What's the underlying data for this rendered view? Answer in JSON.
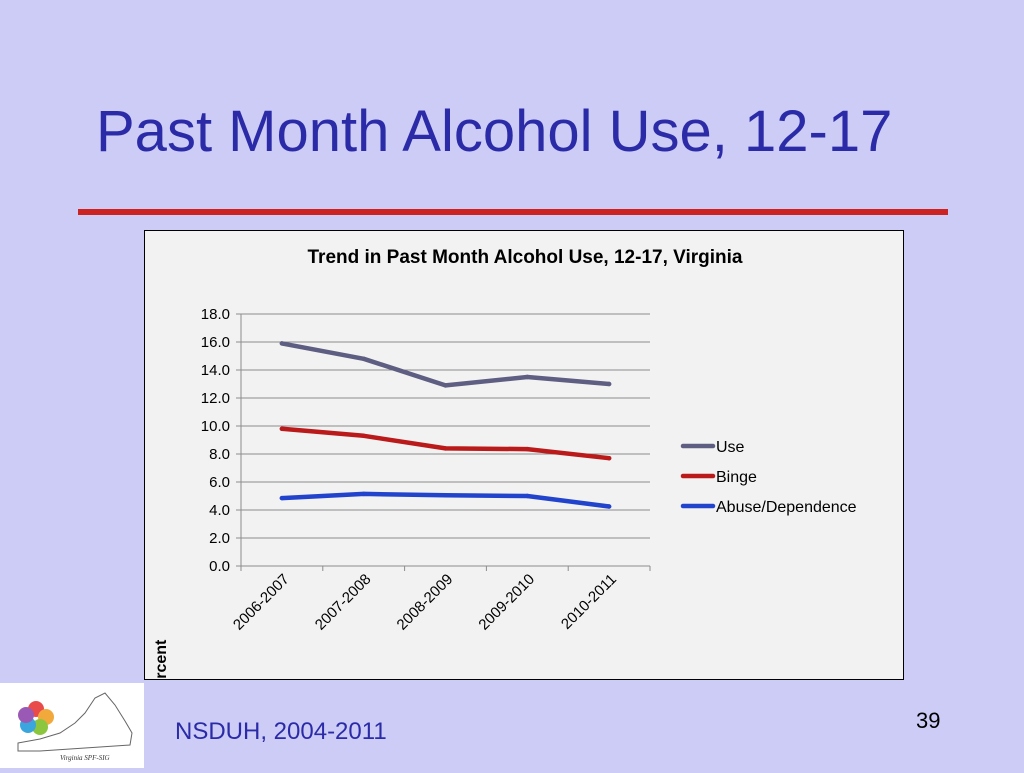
{
  "slide": {
    "title": "Past Month Alcohol Use, 12-17",
    "source": "NSDUH, 2004-2011",
    "page_number": "39",
    "logo_text": "Virginia SPF-SIG"
  },
  "colors": {
    "background": "#ccccf6",
    "title": "#2b2ba8",
    "rule": "#cc2222",
    "chart_bg": "#f2f2f2"
  },
  "chart_data": {
    "type": "line",
    "title": "Trend in Past Month Alcohol Use, 12-17, Virginia",
    "xlabel": "",
    "ylabel": "Percent",
    "ylim": [
      0,
      18
    ],
    "categories": [
      "2006-2007",
      "2007-2008",
      "2008-2009",
      "2009-2010",
      "2010-2011"
    ],
    "y_ticks": [
      "0.0",
      "2.0",
      "4.0",
      "6.0",
      "8.0",
      "10.0",
      "12.0",
      "14.0",
      "16.0",
      "18.0"
    ],
    "grid": true,
    "legend_position": "right",
    "series": [
      {
        "name": "Use",
        "color": "#5e5e82",
        "values": [
          15.9,
          14.8,
          12.9,
          13.5,
          13.0
        ]
      },
      {
        "name": "Binge",
        "color": "#bb1a1a",
        "values": [
          9.8,
          9.3,
          8.4,
          8.35,
          7.7
        ]
      },
      {
        "name": "Abuse/Dependence",
        "color": "#2244cc",
        "values": [
          4.85,
          5.15,
          5.05,
          5.0,
          4.25
        ]
      }
    ]
  }
}
